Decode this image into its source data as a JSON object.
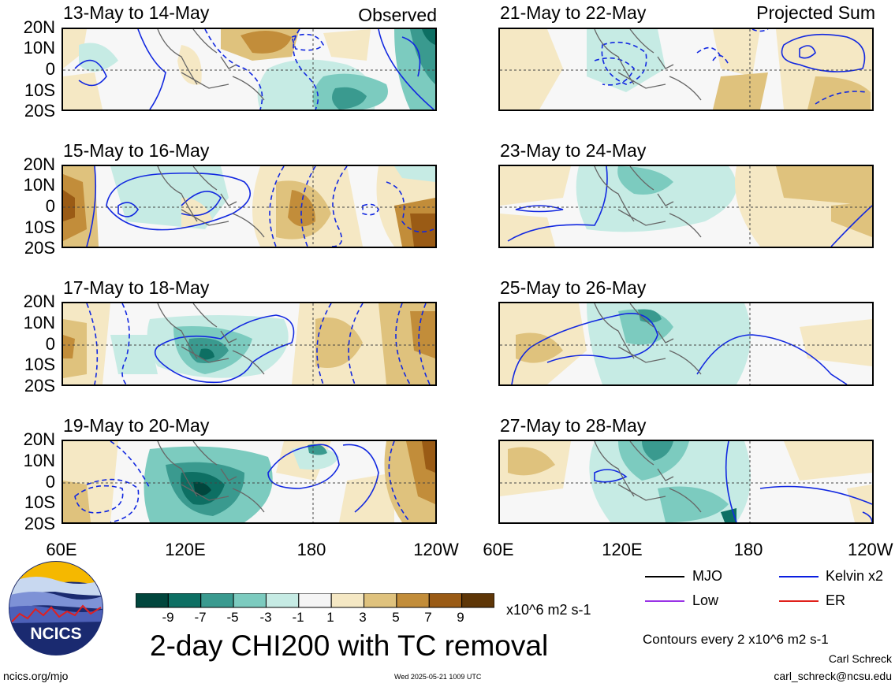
{
  "panels_observed": [
    {
      "title": "13-May to 14-May",
      "tag": "Observed"
    },
    {
      "title": "15-May to 16-May",
      "tag": ""
    },
    {
      "title": "17-May to 18-May",
      "tag": ""
    },
    {
      "title": "19-May to 20-May",
      "tag": ""
    }
  ],
  "panels_projected": [
    {
      "title": "21-May to 22-May",
      "tag": "Projected Sum"
    },
    {
      "title": "23-May to 24-May",
      "tag": ""
    },
    {
      "title": "25-May to 26-May",
      "tag": ""
    },
    {
      "title": "27-May to 28-May",
      "tag": ""
    }
  ],
  "lat_labels": [
    "20N",
    "10N",
    "0",
    "10S",
    "20S"
  ],
  "lon_labels": [
    "60E",
    "120E",
    "180",
    "120W"
  ],
  "colorbar": {
    "colors": [
      "#01463d",
      "#0d6f63",
      "#3a9a8f",
      "#7ccbbf",
      "#c6ebe4",
      "#f5f5f5",
      "#f5e8c4",
      "#dfc27d",
      "#c28d3a",
      "#9a5b15",
      "#5e3607"
    ],
    "labels": [
      "-9",
      "-7",
      "-5",
      "-3",
      "-1",
      "1",
      "3",
      "5",
      "7",
      "9"
    ],
    "units": "x10^6 m2 s-1"
  },
  "legend": [
    {
      "label": "MJO",
      "color": "#000000"
    },
    {
      "label": "Kelvin x2",
      "color": "#0a1ee0"
    },
    {
      "label": "Low",
      "color": "#9932e6"
    },
    {
      "label": "ER",
      "color": "#e0201a"
    }
  ],
  "main_title": "2-day CHI200 with TC removal",
  "contours_note": "Contours every 2 x10^6 m2 s-1",
  "author": "Carl Schreck",
  "email": "carl_schreck@ncsu.edu",
  "site": "ncics.org/mjo",
  "timestamp": "Wed 2025-05-21 1009 UTC",
  "logo_text": "NCICS"
}
